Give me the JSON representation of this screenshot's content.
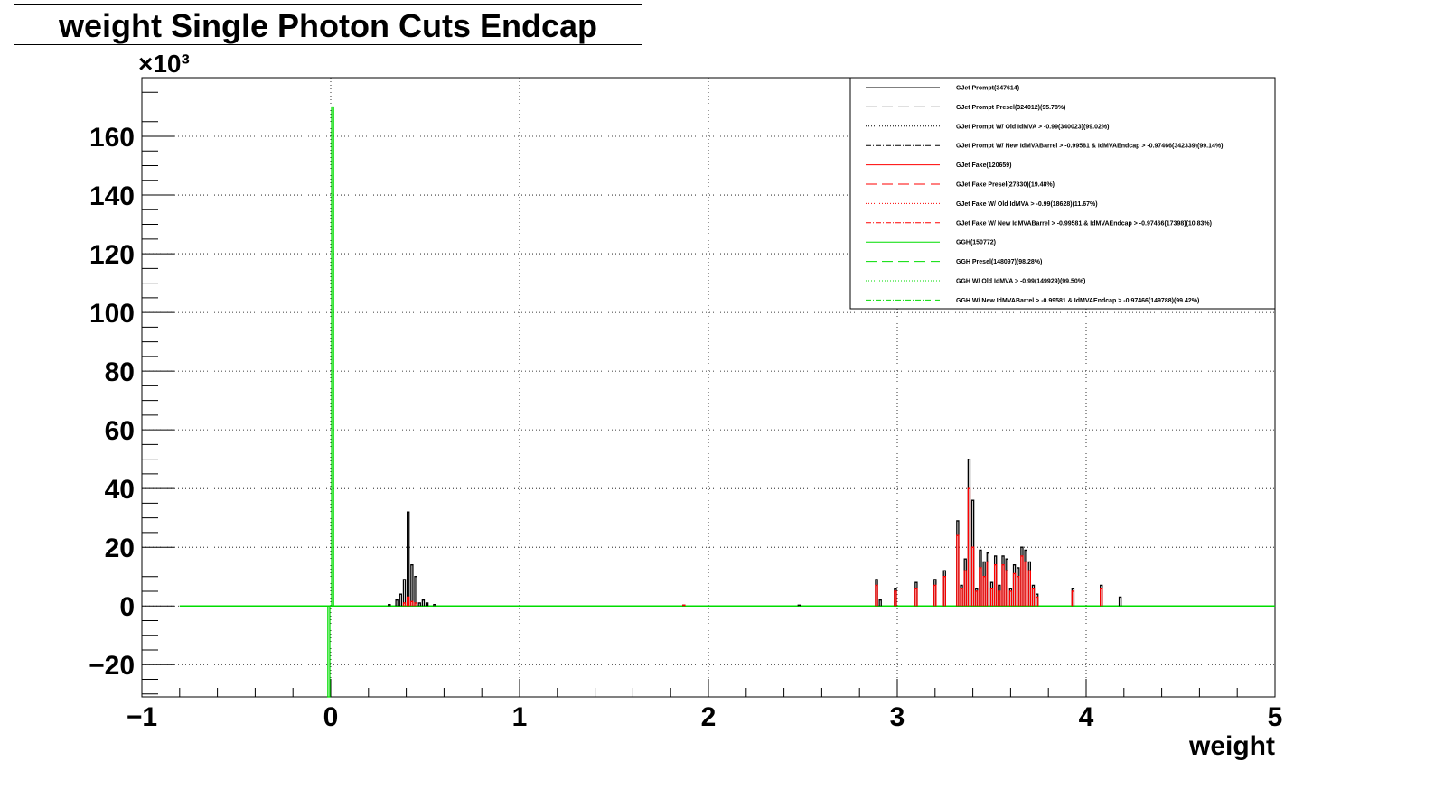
{
  "chart_data": {
    "type": "histogram",
    "title": "weight Single Photon Cuts Endcap",
    "xlabel": "weight",
    "ylabel": "",
    "y_multiplier_label": "×10³",
    "xlim": [
      -1,
      5
    ],
    "ylim": [
      -31,
      180
    ],
    "x_ticks": [
      -1,
      0,
      1,
      2,
      3,
      4,
      5
    ],
    "x_tick_labels": [
      "−1",
      "0",
      "1",
      "2",
      "3",
      "4",
      "5"
    ],
    "y_ticks": [
      -20,
      0,
      20,
      40,
      60,
      80,
      100,
      120,
      140,
      160
    ],
    "y_tick_labels": [
      "−20",
      "0",
      "20",
      "40",
      "60",
      "80",
      "100",
      "120",
      "140",
      "160"
    ],
    "grid": true,
    "legend_position": "top-right",
    "legend": [
      {
        "label": "GJet Prompt(347614)",
        "color": "#000000",
        "dash": "solid"
      },
      {
        "label": "GJet Prompt Presel(324012)(95.78%)",
        "color": "#000000",
        "dash": "dashed"
      },
      {
        "label": "GJet Prompt W/ Old IdMVA > -0.99(340023)(99.02%)",
        "color": "#000000",
        "dash": "dotted"
      },
      {
        "label": "GJet Prompt W/ New IdMVABarrel > -0.99581 & IdMVAEndcap > -0.97466(342339)(99.14%)",
        "color": "#000000",
        "dash": "dashdot"
      },
      {
        "label": "GJet Fake(120659)",
        "color": "#ff0000",
        "dash": "solid"
      },
      {
        "label": "GJet Fake Presel(27830)(19.48%)",
        "color": "#ff0000",
        "dash": "dashed"
      },
      {
        "label": "GJet Fake W/ Old IdMVA > -0.99(18628)(11.67%)",
        "color": "#ff0000",
        "dash": "dotted"
      },
      {
        "label": "GJet Fake W/ New IdMVABarrel > -0.99581 & IdMVAEndcap > -0.97466(17398)(10.83%)",
        "color": "#ff0000",
        "dash": "dashdot"
      },
      {
        "label": "GGH(150772)",
        "color": "#00dd00",
        "dash": "solid"
      },
      {
        "label": "GGH Presel(148097)(98.28%)",
        "color": "#00dd00",
        "dash": "dashed"
      },
      {
        "label": "GGH W/ Old IdMVA > -0.99(149929)(99.50%)",
        "color": "#00dd00",
        "dash": "dotted"
      },
      {
        "label": "GGH W/ New IdMVABarrel > -0.99581 & IdMVAEndcap > -0.97466(149788)(99.42%)",
        "color": "#00dd00",
        "dash": "dashdot"
      }
    ],
    "series": [
      {
        "name": "GJet Prompt(347614)",
        "color": "#000000",
        "x": [
          0.31,
          0.35,
          0.37,
          0.39,
          0.41,
          0.43,
          0.45,
          0.47,
          0.49,
          0.51,
          0.55,
          1.87,
          2.48,
          2.89,
          2.91,
          2.99,
          3.1,
          3.2,
          3.25,
          3.32,
          3.34,
          3.36,
          3.38,
          3.4,
          3.42,
          3.44,
          3.46,
          3.48,
          3.5,
          3.52,
          3.54,
          3.56,
          3.58,
          3.6,
          3.62,
          3.64,
          3.66,
          3.68,
          3.7,
          3.72,
          3.74,
          3.93,
          4.08,
          4.18
        ],
        "y": [
          0.5,
          2,
          4,
          9,
          32,
          14,
          10,
          1,
          2,
          1,
          0.5,
          0.3,
          0.3,
          9,
          2,
          6,
          8,
          9,
          12,
          29,
          7,
          16,
          50,
          36,
          6,
          19,
          15,
          18,
          8,
          17,
          7,
          17,
          16,
          6,
          14,
          13,
          20,
          19,
          15,
          7,
          4,
          6,
          7,
          3
        ]
      },
      {
        "name": "GJet Fake(120659)",
        "color": "#ff0000",
        "x": [
          0.39,
          0.41,
          0.43,
          0.45,
          1.87,
          2.89,
          2.99,
          3.1,
          3.2,
          3.25,
          3.32,
          3.34,
          3.36,
          3.38,
          3.4,
          3.42,
          3.44,
          3.46,
          3.48,
          3.5,
          3.52,
          3.54,
          3.56,
          3.58,
          3.6,
          3.62,
          3.64,
          3.66,
          3.68,
          3.7,
          3.72,
          3.74,
          3.93,
          4.08
        ],
        "y": [
          1,
          3,
          1.5,
          1,
          0.3,
          7,
          5,
          6,
          7,
          10,
          24,
          6,
          12,
          40,
          20,
          5,
          13,
          10,
          15,
          6,
          14,
          5,
          14,
          12,
          5,
          11,
          10,
          17,
          15,
          12,
          6,
          3,
          5,
          6
        ]
      },
      {
        "name": "GGH(150772)",
        "color": "#00dd00",
        "x": [
          -0.01,
          0.0,
          0.01
        ],
        "y": [
          -31,
          0,
          170
        ]
      }
    ]
  }
}
